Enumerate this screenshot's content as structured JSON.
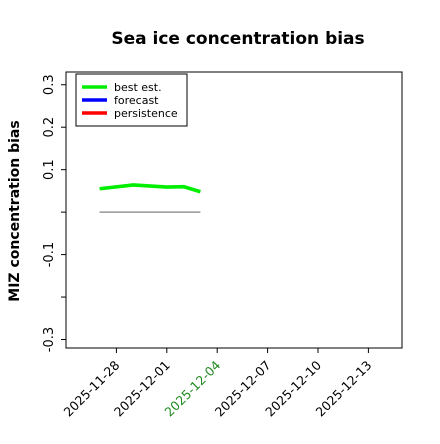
{
  "chart_data": {
    "type": "line",
    "title": "Sea ice concentration bias",
    "ylabel": "MIZ concentration bias",
    "xlabel": "",
    "ylim": [
      -0.32,
      0.33
    ],
    "xlim": [
      "2025-11-25",
      "2025-12-15"
    ],
    "yticks": [
      -0.3,
      -0.2,
      -0.1,
      0.0,
      0.1,
      0.2,
      0.3
    ],
    "ytick_labels": [
      "-0.3",
      "",
      "-0.1",
      "",
      "0.1",
      "0.2",
      "0.3"
    ],
    "xticks": [
      "2025-11-28",
      "2025-12-01",
      "2025-12-04",
      "2025-12-07",
      "2025-12-10",
      "2025-12-13"
    ],
    "xtick_colors": [
      "#000000",
      "#000000",
      "#228B22",
      "#000000",
      "#000000",
      "#000000"
    ],
    "grid": false,
    "legend_position": "top-left",
    "series": [
      {
        "name": "best est.",
        "color": "#00ee00",
        "x": [
          "2025-11-27",
          "2025-11-29",
          "2025-12-01",
          "2025-12-02",
          "2025-12-03"
        ],
        "values": [
          0.055,
          0.064,
          0.059,
          0.06,
          0.048
        ]
      },
      {
        "name": "forecast",
        "color": "#0000ff",
        "x": [],
        "values": []
      },
      {
        "name": "persistence",
        "color": "#ff0000",
        "x": [],
        "values": []
      }
    ],
    "reference_line": {
      "color": "#808080",
      "x": [
        "2025-11-27",
        "2025-12-03"
      ],
      "value": 0.0
    }
  }
}
